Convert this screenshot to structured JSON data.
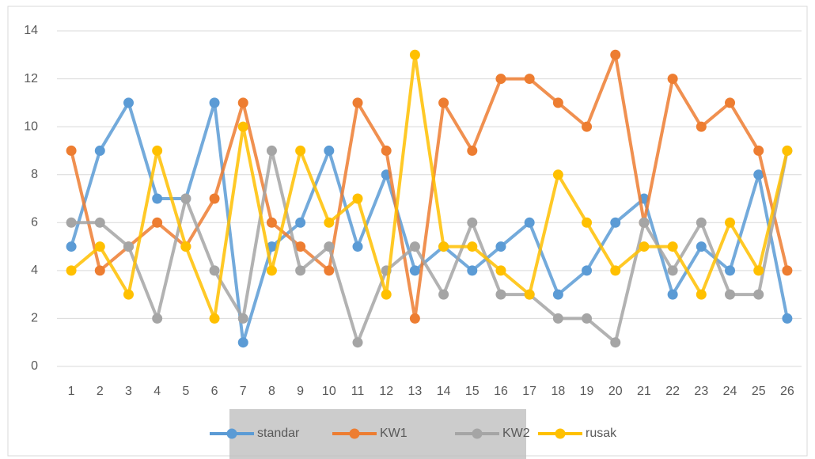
{
  "chart_data": {
    "type": "line",
    "categories": [
      "1",
      "2",
      "3",
      "4",
      "5",
      "6",
      "7",
      "8",
      "9",
      "10",
      "11",
      "12",
      "13",
      "14",
      "15",
      "16",
      "17",
      "18",
      "19",
      "20",
      "21",
      "22",
      "23",
      "24",
      "25",
      "26"
    ],
    "series": [
      {
        "name": "standar",
        "color": "#5b9bd5",
        "values": [
          5,
          9,
          11,
          7,
          7,
          11,
          1,
          5,
          6,
          9,
          5,
          8,
          4,
          5,
          4,
          5,
          6,
          3,
          4,
          6,
          7,
          3,
          5,
          4,
          8,
          2
        ]
      },
      {
        "name": "KW1",
        "color": "#ed7d31",
        "values": [
          9,
          4,
          5,
          6,
          5,
          7,
          11,
          6,
          5,
          4,
          11,
          9,
          2,
          11,
          9,
          12,
          12,
          11,
          10,
          13,
          6,
          12,
          10,
          11,
          9,
          4
        ]
      },
      {
        "name": "KW2",
        "color": "#a5a5a5",
        "values": [
          6,
          6,
          5,
          2,
          7,
          4,
          2,
          9,
          4,
          5,
          1,
          4,
          5,
          3,
          6,
          3,
          3,
          2,
          2,
          1,
          6,
          4,
          6,
          3,
          3,
          9
        ]
      },
      {
        "name": "rusak",
        "color": "#ffc000",
        "values": [
          4,
          5,
          3,
          9,
          5,
          2,
          10,
          4,
          9,
          6,
          7,
          3,
          13,
          5,
          5,
          4,
          3,
          8,
          6,
          4,
          5,
          5,
          3,
          6,
          4,
          9
        ]
      }
    ],
    "ylim": [
      0,
      14
    ],
    "yticks": [
      0,
      2,
      4,
      6,
      8,
      10,
      12,
      14
    ],
    "grid": true,
    "legend": "bottom"
  }
}
